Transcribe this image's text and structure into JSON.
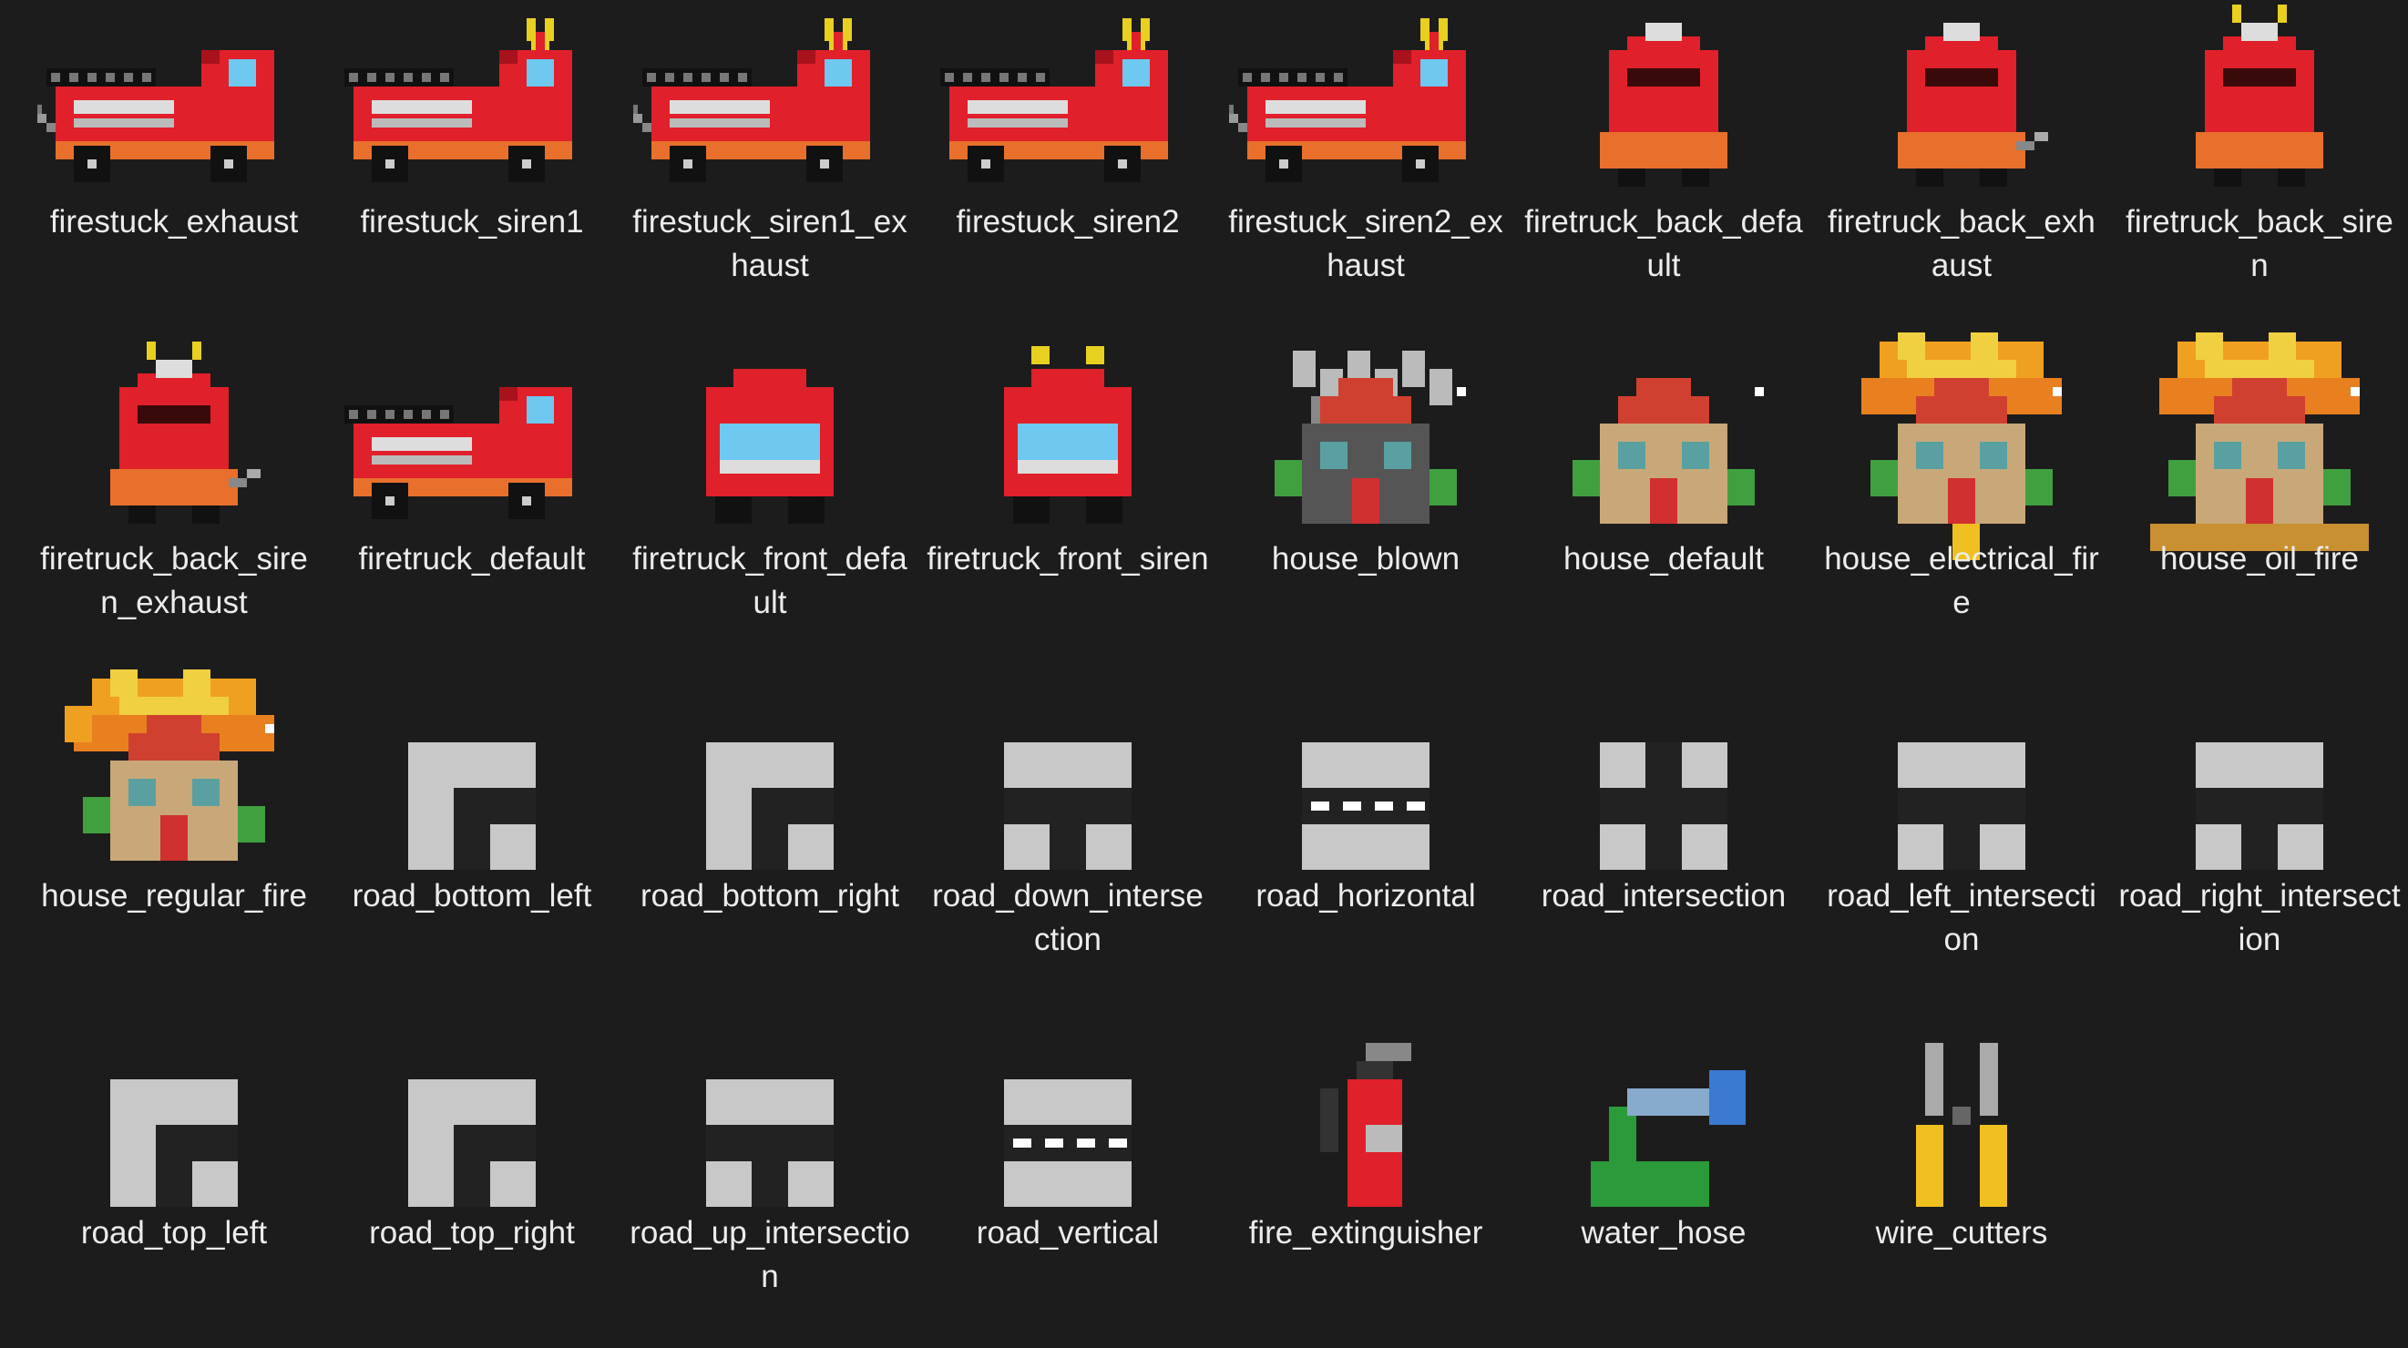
{
  "window": {
    "view": "file-icon-grid"
  },
  "files": [
    {
      "name": "firestuck_exhaust",
      "icon": "firetruck-side-exhaust-icon"
    },
    {
      "name": "firestuck_siren1",
      "icon": "firetruck-side-siren-icon"
    },
    {
      "name": "firestuck_siren1_exhaust",
      "icon": "firetruck-side-siren-exhaust-icon"
    },
    {
      "name": "firestuck_siren2",
      "icon": "firetruck-side-siren-icon"
    },
    {
      "name": "firestuck_siren2_exhaust",
      "icon": "firetruck-side-siren-exhaust-icon"
    },
    {
      "name": "firetruck_back_default",
      "icon": "firetruck-back-icon"
    },
    {
      "name": "firetruck_back_exhaust",
      "icon": "firetruck-back-exhaust-icon"
    },
    {
      "name": "firetruck_back_siren",
      "icon": "firetruck-back-siren-icon"
    },
    {
      "name": "firetruck_back_siren_exhaust",
      "icon": "firetruck-back-siren-exhaust-icon"
    },
    {
      "name": "firetruck_default",
      "icon": "firetruck-side-icon"
    },
    {
      "name": "firetruck_front_default",
      "icon": "firetruck-front-icon"
    },
    {
      "name": "firetruck_front_siren",
      "icon": "firetruck-front-siren-icon"
    },
    {
      "name": "house_blown",
      "icon": "house-blown-icon"
    },
    {
      "name": "house_default",
      "icon": "house-icon"
    },
    {
      "name": "house_electrical_fire",
      "icon": "house-electrical-fire-icon"
    },
    {
      "name": "house_oil_fire",
      "icon": "house-oil-fire-icon"
    },
    {
      "name": "house_regular_fire",
      "icon": "house-regular-fire-icon"
    },
    {
      "name": "road_bottom_left",
      "icon": "road-corner-icon"
    },
    {
      "name": "road_bottom_right",
      "icon": "road-corner-icon"
    },
    {
      "name": "road_down_intersection",
      "icon": "road-t-junction-icon"
    },
    {
      "name": "road_horizontal",
      "icon": "road-straight-icon"
    },
    {
      "name": "road_intersection",
      "icon": "road-cross-icon"
    },
    {
      "name": "road_left_intersection",
      "icon": "road-t-junction-icon"
    },
    {
      "name": "road_right_intersection",
      "icon": "road-t-junction-icon"
    },
    {
      "name": "road_top_left",
      "icon": "road-corner-icon"
    },
    {
      "name": "road_top_right",
      "icon": "road-corner-icon"
    },
    {
      "name": "road_up_intersection",
      "icon": "road-t-junction-icon"
    },
    {
      "name": "road_vertical",
      "icon": "road-straight-icon"
    },
    {
      "name": "fire_extinguisher",
      "icon": "fire-extinguisher-icon"
    },
    {
      "name": "water_hose",
      "icon": "water-hose-icon"
    },
    {
      "name": "wire_cutters",
      "icon": "wire-cutters-icon"
    }
  ]
}
